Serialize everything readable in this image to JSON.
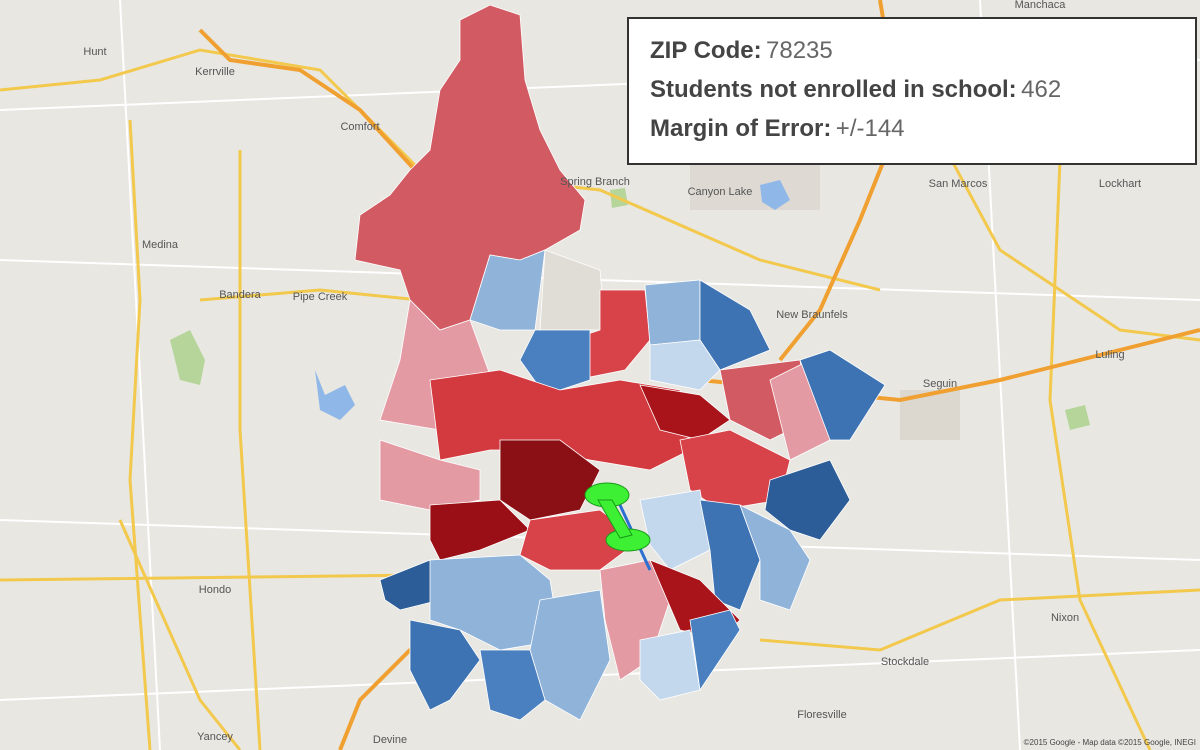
{
  "info": {
    "zip_label": "ZIP Code:",
    "zip_value": "78235",
    "students_label": "Students not enrolled in school:",
    "students_value": "462",
    "moe_label": "Margin of Error:",
    "moe_value": "+/-144"
  },
  "places": [
    "Manchaca",
    "Hunt",
    "Kerrville",
    "Comfort",
    "Spring Branch",
    "Canyon Lake",
    "San Marcos",
    "Lockhart",
    "Medina",
    "Bandera",
    "Pipe Creek",
    "New Braunfels",
    "Luling",
    "Seguin",
    "Hondo",
    "Stockdale",
    "Nixon",
    "Yancey",
    "Devine",
    "Floresville"
  ],
  "attribution": "©2015 Google - Map data ©2015 Google, INEGI"
}
